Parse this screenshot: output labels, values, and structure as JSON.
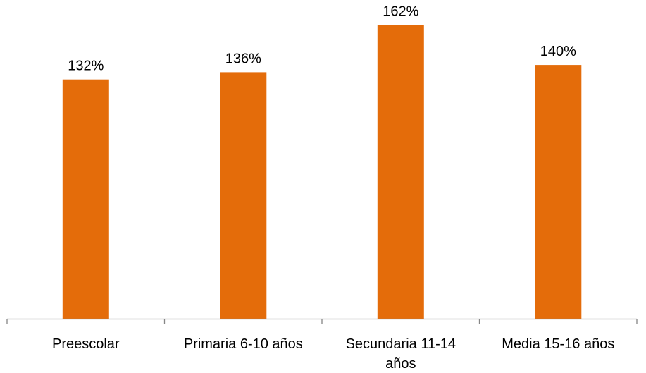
{
  "chart_data": {
    "type": "bar",
    "categories": [
      [
        "Preescolar"
      ],
      [
        "Primaria 6-10 años"
      ],
      [
        "Secundaria 11-14",
        "años"
      ],
      [
        "Media 15-16 años"
      ]
    ],
    "values": [
      132,
      136,
      162,
      140
    ],
    "data_labels": [
      "132%",
      "136%",
      "162%",
      "140%"
    ],
    "title": "",
    "xlabel": "",
    "ylabel": "",
    "ylim": [
      0,
      170
    ],
    "grid": false,
    "legend": "none",
    "bar_color": "#E46C0A",
    "axis_color": "#868686"
  }
}
